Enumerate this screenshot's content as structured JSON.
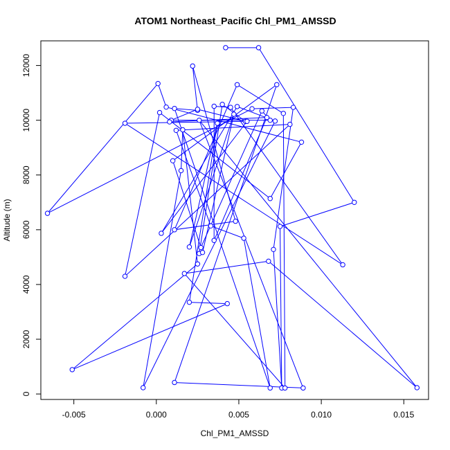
{
  "chart_data": {
    "type": "line",
    "title": "ATOM1 Northeast_Pacific Chl_PM1_AMSSD",
    "xlabel": "Chl_PM1_AMSSD",
    "ylabel": "Altitude (m)",
    "xlim": [
      -0.007,
      0.0165
    ],
    "ylim": [
      -200,
      12900
    ],
    "xticks": [
      -0.005,
      0.0,
      0.005,
      0.01,
      0.015
    ],
    "xtick_labels": [
      "-0.005",
      "0.000",
      "0.005",
      "0.010",
      "0.015"
    ],
    "yticks": [
      0,
      2000,
      4000,
      6000,
      8000,
      10000,
      12000
    ],
    "ytick_labels": [
      "0",
      "2000",
      "4000",
      "6000",
      "8000",
      "10000",
      "12000"
    ],
    "grid": false,
    "series_color": "#0000ff",
    "markers": "open-circle",
    "x": [
      0.0042,
      0.0062,
      0.012,
      0.0075,
      0.0076,
      0.0071,
      0.0083,
      0.0058,
      -0.0066,
      0.0001,
      0.0006,
      0.0088,
      0.0069,
      0.0002,
      -0.0019,
      0.0081,
      0.0012,
      0.0033,
      0.0053,
      0.0069,
      0.0011,
      0.0025,
      0.0022,
      0.0048,
      0.0011,
      0.0049,
      0.0077,
      0.0078,
      0.0017,
      0.0068,
      0.0158,
      0.0026,
      0.0089,
      0.0011,
      0.0073,
      0.001,
      0.0027,
      0.0064,
      0.0069,
      0.0009,
      0.0025,
      0.0054,
      0.004,
      0.0026,
      0.0028,
      0.0047,
      0.002,
      0.0037,
      0.002,
      0.0043,
      -0.0051,
      0.0025,
      0.0016,
      0.0015,
      -0.0008,
      0.0072,
      0.0049,
      0.0003,
      0.0055,
      -0.0019,
      0.0113,
      0.0045,
      0.0035,
      0.0035,
      0.0067,
      0.0008
    ],
    "y": [
      12650,
      12650,
      7000,
      6120,
      220,
      5280,
      10470,
      10420,
      6600,
      11340,
      10480,
      9200,
      7140,
      10280,
      4300,
      9850,
      9630,
      6140,
      5690,
      220,
      10430,
      10360,
      11980,
      6310,
      6000,
      11300,
      10250,
      220,
      4400,
      4850,
      230,
      10000,
      220,
      420,
      11300,
      8520,
      5350,
      10340,
      10000,
      10000,
      10400,
      9960,
      10580,
      5130,
      5170,
      10220,
      5370,
      9890,
      3350,
      3300,
      890,
      4750,
      9650,
      8160,
      230,
      9970,
      10500,
      5870,
      9960,
      9890,
      4720,
      10470,
      10510,
      5610,
      10100,
      9940
    ]
  }
}
